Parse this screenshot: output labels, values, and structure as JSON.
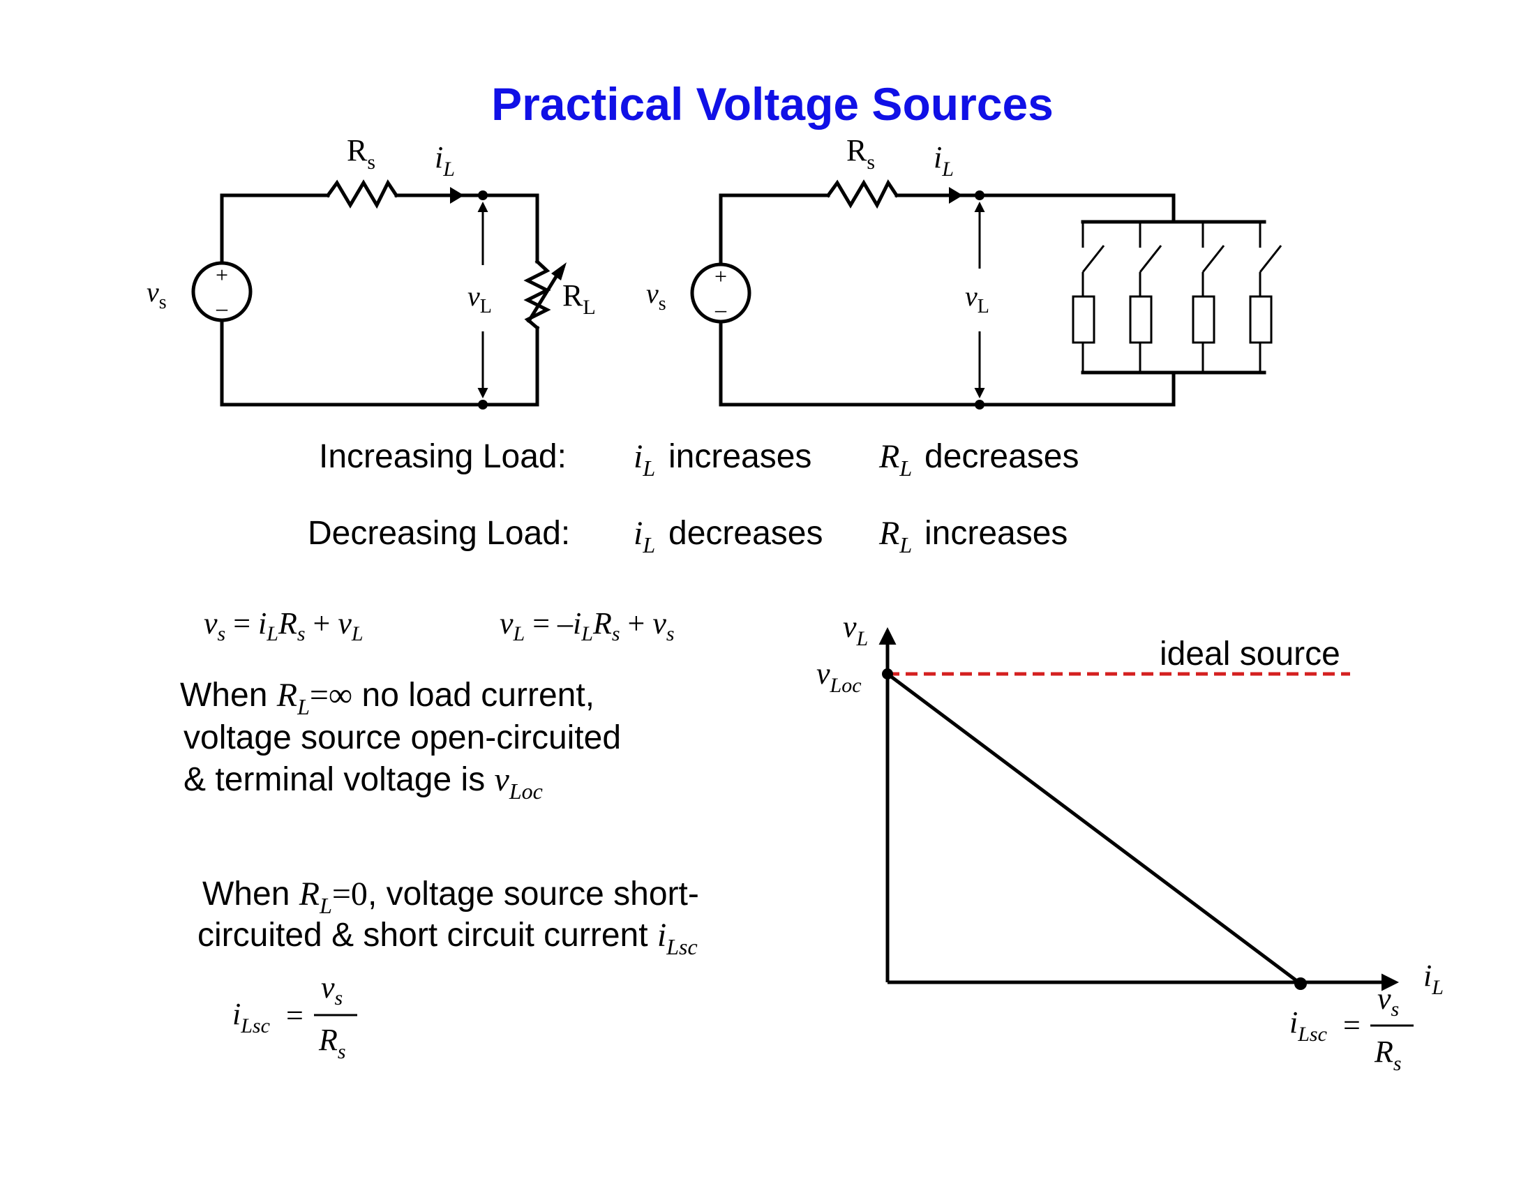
{
  "title": "Practical Voltage Sources",
  "circuits": {
    "left": {
      "Rs": "R",
      "Rs_sub": "s",
      "iL": "i",
      "iL_sub": "L",
      "vs": "v",
      "vs_sub": "s",
      "vL": "v",
      "vL_sub": "L",
      "RL": "R",
      "RL_sub": "L",
      "plus": "+",
      "minus": "–"
    },
    "right": {
      "Rs": "R",
      "Rs_sub": "s",
      "iL": "i",
      "iL_sub": "L",
      "vs": "v",
      "vs_sub": "s",
      "vL": "v",
      "vL_sub": "L",
      "plus": "+",
      "minus": "–"
    }
  },
  "load_table": {
    "increasing_label": "Increasing Load:",
    "increasing_i": "increases",
    "increasing_r": "decreases",
    "decreasing_label": "Decreasing Load:",
    "decreasing_i": "decreases",
    "decreasing_r": "increases",
    "i_sym": "i",
    "i_sub": "L",
    "r_sym": "R",
    "r_sub": "L"
  },
  "equations": {
    "eq1": {
      "lhs": "v",
      "lhs_sub": "s",
      "eq": " = ",
      "t1": "i",
      "t1_sub": "L",
      "t2": "R",
      "t2_sub": "s",
      "plus": " + ",
      "t3": "v",
      "t3_sub": "L"
    },
    "eq2": {
      "lhs": "v",
      "lhs_sub": "L",
      "eq": " = –",
      "t1": "i",
      "t1_sub": "L",
      "t2": "R",
      "t2_sub": "s",
      "plus": " + ",
      "t3": "v",
      "t3_sub": "s"
    }
  },
  "open_circuit": {
    "line1_a": "When ",
    "sym": "R",
    "sym_sub": "L",
    "cond": "=∞",
    "line1_b": " no load current,",
    "line2": "voltage source open-circuited",
    "line3": "& terminal voltage is ",
    "v": "v",
    "v_sub": "Loc"
  },
  "short_circuit": {
    "line1_a": "When ",
    "sym": "R",
    "sym_sub": "L",
    "cond": "=0",
    "line1_b": ", voltage source short-",
    "line2": "circuited & short circuit current ",
    "i": "i",
    "i_sub": "Lsc"
  },
  "formula": {
    "lhs": "i",
    "lhs_sub": "Lsc",
    "eq": "=",
    "num": "v",
    "num_sub": "s",
    "den": "R",
    "den_sub": "s"
  },
  "graph": {
    "y_axis": "v",
    "y_axis_sub": "L",
    "x_axis": "i",
    "x_axis_sub": "L",
    "y_point": "v",
    "y_point_sub": "Loc",
    "ideal_label": "ideal source",
    "ideal_color": "#d42020",
    "x_point_lhs": "i",
    "x_point_lhs_sub": "Lsc",
    "x_point_eq": "=",
    "x_point_num": "v",
    "x_point_num_sub": "s",
    "x_point_den": "R",
    "x_point_den_sub": "s"
  }
}
